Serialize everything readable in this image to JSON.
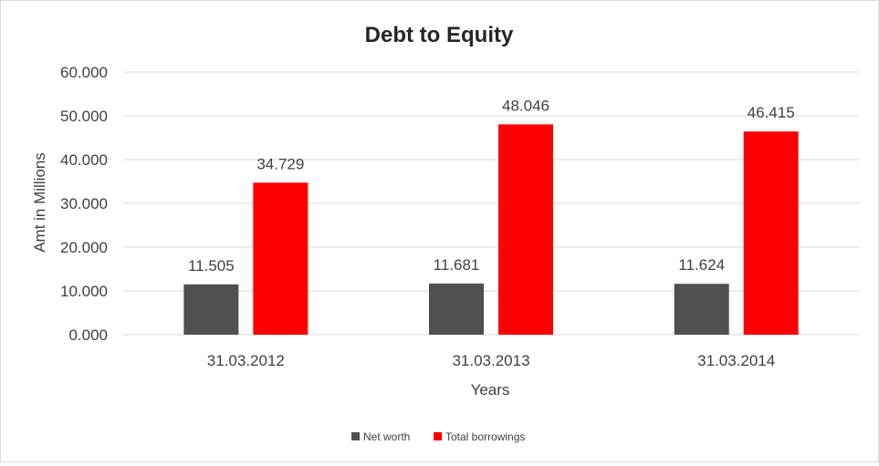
{
  "chart_data": {
    "type": "bar",
    "title": "Debt to Equity",
    "xlabel": "Years",
    "ylabel": "Amt in Millions",
    "categories": [
      "31.03.2012",
      "31.03.2013",
      "31.03.2014"
    ],
    "series": [
      {
        "name": "Net worth",
        "values": [
          11.505,
          11.681,
          11.624
        ],
        "labels": [
          "11.505",
          "11.681",
          "11.624"
        ],
        "color": "#505050"
      },
      {
        "name": "Total borrowings",
        "values": [
          34.729,
          48.046,
          46.415
        ],
        "labels": [
          "34.729",
          "48.046",
          "46.415"
        ],
        "color": "#ff0000"
      }
    ],
    "ylim": [
      0,
      60
    ],
    "yticks": [
      0,
      10,
      20,
      30,
      40,
      50,
      60
    ],
    "ytick_labels": [
      "0.000",
      "10.000",
      "20.000",
      "30.000",
      "40.000",
      "50.000",
      "60.000"
    ],
    "grid": true,
    "legend_position": "bottom"
  }
}
